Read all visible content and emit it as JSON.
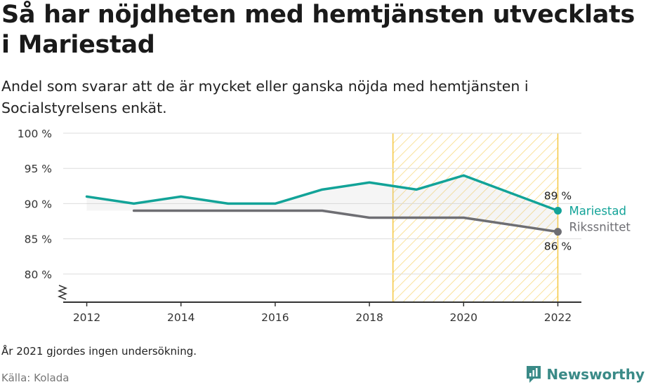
{
  "title": "Så har nöjdheten med hemtjänsten utvecklats i Mariestad",
  "subtitle": "Andel som svarar att de är mycket eller ganska nöjda med hemtjänsten i Socialstyrelsens enkät.",
  "note": "År 2021 gjordes ingen undersökning.",
  "source": "Källa: Kolada",
  "brand": "Newsworthy",
  "colors": {
    "mariestad": "#12a398",
    "riket": "#6e6e73",
    "highlight": "#f5c842",
    "grid": "#dddddd",
    "axis": "#333333"
  },
  "chart_data": {
    "type": "line",
    "x_ticks": [
      2012,
      2014,
      2016,
      2018,
      2020,
      2022
    ],
    "y_ticks": [
      80,
      85,
      90,
      95,
      100
    ],
    "y_tick_labels": [
      "80 %",
      "85 %",
      "90 %",
      "95 %",
      "100 %"
    ],
    "ylim": [
      76,
      100
    ],
    "xlim": [
      2011.5,
      2022.5
    ],
    "highlight_range": [
      2018.5,
      2022
    ],
    "series": [
      {
        "name": "Mariestad",
        "x": [
          2012,
          2013,
          2014,
          2015,
          2016,
          2017,
          2018,
          2019,
          2020,
          2022
        ],
        "values": [
          91,
          90,
          91,
          90,
          90,
          92,
          93,
          92,
          94,
          89
        ],
        "end_label": "89 %"
      },
      {
        "name": "Rikssnittet",
        "x": [
          2013,
          2014,
          2015,
          2016,
          2017,
          2018,
          2019,
          2020,
          2022
        ],
        "values": [
          89,
          89,
          89,
          89,
          89,
          88,
          88,
          88,
          86
        ],
        "end_label": "86 %"
      }
    ]
  }
}
